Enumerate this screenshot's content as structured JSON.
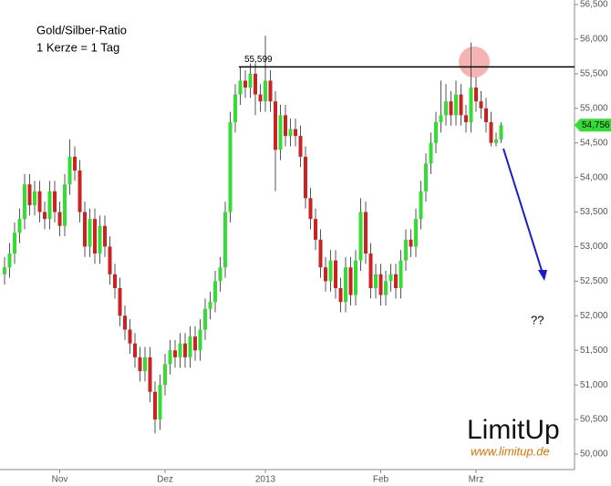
{
  "chart_data": {
    "type": "candlestick",
    "title": "Gold/Silber-Ratio",
    "subtitle": "1 Kerze = 1 Tag",
    "up_color": "#33dd33",
    "down_color": "#cc2222",
    "categories": [
      null,
      null,
      null,
      null,
      null,
      null,
      null,
      null,
      null,
      null,
      null,
      "Nov",
      null,
      null,
      null,
      null,
      null,
      null,
      null,
      null,
      null,
      null,
      null,
      null,
      null,
      null,
      null,
      null,
      null,
      null,
      null,
      null,
      "Dez",
      null,
      null,
      null,
      null,
      null,
      null,
      null,
      null,
      null,
      null,
      null,
      null,
      null,
      null,
      null,
      null,
      null,
      null,
      null,
      "2013",
      null,
      null,
      null,
      null,
      null,
      null,
      null,
      null,
      null,
      null,
      null,
      null,
      null,
      null,
      null,
      null,
      null,
      null,
      null,
      null,
      null,
      null,
      "Feb",
      null,
      null,
      null,
      null,
      null,
      null,
      null,
      null,
      null,
      null,
      null,
      null,
      null,
      null,
      null,
      null,
      null,
      null,
      "Mrz",
      null,
      null,
      null,
      null,
      null
    ],
    "open": [
      52.6,
      52.7,
      52.9,
      53.2,
      53.4,
      53.9,
      53.6,
      53.8,
      53.5,
      53.4,
      53.8,
      53.5,
      53.3,
      53.9,
      54.3,
      54.1,
      53.5,
      53.0,
      53.4,
      52.9,
      53.3,
      53.0,
      52.6,
      52.4,
      52.0,
      51.8,
      51.6,
      51.4,
      51.2,
      51.4,
      50.9,
      50.5,
      51.0,
      51.3,
      51.5,
      51.4,
      51.6,
      51.4,
      51.7,
      51.5,
      51.8,
      52.1,
      52.2,
      52.5,
      52.7,
      53.5,
      54.8,
      55.2,
      55.4,
      55.3,
      55.5,
      55.2,
      55.1,
      55.4,
      55.1,
      54.4,
      54.9,
      54.6,
      54.7,
      54.6,
      54.3,
      53.7,
      53.4,
      53.1,
      52.7,
      52.5,
      52.8,
      52.4,
      52.2,
      52.7,
      52.3,
      52.8,
      53.5,
      52.9,
      52.4,
      52.6,
      52.3,
      52.5,
      52.6,
      52.4,
      52.8,
      53.1,
      53.0,
      53.4,
      53.8,
      54.2,
      54.5,
      54.8,
      54.9,
      55.1,
      54.9,
      55.2,
      54.9,
      54.8,
      55.3,
      55.1,
      55.0,
      54.8,
      54.5,
      54.55
    ],
    "high": [
      52.85,
      53.05,
      53.35,
      53.55,
      54.05,
      54.05,
      53.95,
      53.95,
      53.65,
      53.95,
      53.95,
      53.65,
      54.05,
      54.55,
      54.45,
      54.25,
      53.65,
      53.55,
      53.55,
      53.45,
      53.45,
      53.15,
      52.75,
      52.55,
      52.15,
      51.95,
      51.75,
      51.55,
      51.55,
      51.55,
      51.05,
      51.15,
      51.45,
      51.65,
      51.65,
      51.75,
      51.75,
      51.85,
      51.85,
      51.95,
      52.25,
      52.35,
      52.65,
      52.85,
      53.65,
      54.95,
      55.35,
      55.6,
      55.55,
      55.65,
      55.65,
      55.35,
      56.05,
      55.55,
      55.25,
      55.05,
      55.05,
      54.85,
      54.85,
      54.75,
      54.45,
      53.85,
      53.55,
      53.25,
      52.85,
      52.95,
      52.95,
      52.55,
      52.85,
      52.85,
      52.95,
      53.7,
      53.65,
      53.05,
      52.75,
      52.75,
      52.65,
      52.75,
      52.75,
      52.95,
      53.25,
      53.25,
      53.55,
      53.95,
      54.35,
      54.65,
      54.95,
      55.4,
      55.35,
      55.25,
      55.4,
      55.35,
      55.05,
      55.95,
      55.45,
      55.25,
      55.15,
      54.95,
      54.65,
      54.8
    ],
    "low": [
      52.45,
      52.55,
      52.75,
      53.05,
      53.25,
      53.45,
      53.45,
      53.35,
      53.25,
      53.25,
      53.35,
      53.15,
      53.15,
      53.75,
      53.95,
      53.35,
      52.85,
      52.85,
      52.75,
      52.75,
      52.85,
      52.45,
      52.25,
      51.85,
      51.65,
      51.45,
      51.25,
      51.05,
      51.05,
      50.75,
      50.3,
      50.35,
      50.85,
      51.15,
      51.25,
      51.25,
      51.25,
      51.25,
      51.35,
      51.35,
      51.65,
      51.95,
      52.05,
      52.35,
      52.55,
      53.35,
      54.65,
      55.05,
      55.15,
      55.15,
      54.9,
      54.95,
      54.95,
      54.95,
      53.8,
      54.25,
      54.45,
      54.45,
      54.45,
      54.15,
      53.55,
      53.25,
      52.95,
      52.55,
      52.35,
      52.35,
      52.25,
      52.05,
      52.05,
      52.15,
      52.15,
      52.65,
      52.75,
      52.25,
      52.25,
      52.15,
      52.15,
      52.35,
      52.25,
      52.25,
      52.65,
      52.85,
      52.85,
      53.25,
      53.65,
      54.05,
      54.35,
      54.65,
      54.75,
      54.75,
      54.75,
      54.75,
      54.65,
      54.65,
      54.95,
      54.85,
      54.65,
      54.45,
      54.45,
      54.5
    ],
    "close": [
      52.7,
      52.9,
      53.2,
      53.4,
      53.9,
      53.6,
      53.8,
      53.5,
      53.4,
      53.8,
      53.5,
      53.3,
      53.9,
      54.3,
      54.1,
      53.5,
      53.0,
      53.4,
      52.9,
      53.3,
      53.0,
      52.6,
      52.4,
      52.0,
      51.8,
      51.6,
      51.4,
      51.2,
      51.4,
      50.9,
      50.5,
      51.0,
      51.3,
      51.5,
      51.4,
      51.6,
      51.4,
      51.7,
      51.5,
      51.8,
      52.1,
      52.2,
      52.5,
      52.7,
      53.5,
      54.8,
      55.2,
      55.4,
      55.3,
      55.5,
      55.2,
      55.1,
      55.4,
      55.1,
      54.4,
      54.9,
      54.6,
      54.7,
      54.6,
      54.3,
      53.7,
      53.4,
      53.1,
      52.7,
      52.5,
      52.8,
      52.4,
      52.2,
      52.7,
      52.3,
      52.8,
      53.5,
      52.9,
      52.4,
      52.6,
      52.3,
      52.5,
      52.6,
      52.4,
      52.8,
      53.1,
      53.0,
      53.4,
      53.8,
      54.2,
      54.5,
      54.8,
      54.9,
      55.1,
      54.9,
      55.2,
      54.9,
      54.8,
      55.3,
      55.1,
      55.0,
      54.8,
      54.5,
      54.55,
      54.756
    ],
    "last_label": "54,756",
    "resistance": {
      "value": 55.599,
      "label": "55,599"
    },
    "annotation": "??",
    "ylim": [
      49.776,
      56.566
    ],
    "yticks": [
      {
        "value": 50,
        "label": "50,000"
      },
      {
        "value": 50.5,
        "label": "50,500"
      },
      {
        "value": 51,
        "label": "51,000"
      },
      {
        "value": 51.5,
        "label": "51,500"
      },
      {
        "value": 52,
        "label": "52,000"
      },
      {
        "value": 52.5,
        "label": "52,500"
      },
      {
        "value": 53,
        "label": "53,000"
      },
      {
        "value": 53.5,
        "label": "53,500"
      },
      {
        "value": 54,
        "label": "54,000"
      },
      {
        "value": 54.5,
        "label": "54,500"
      },
      {
        "value": 55,
        "label": "55,000"
      },
      {
        "value": 55.5,
        "label": "55,500"
      },
      {
        "value": 56,
        "label": "56,000"
      },
      {
        "value": 56.5,
        "label": "56,500"
      }
    ]
  },
  "logo": {
    "name": "LimitUp",
    "url": "www.limitup.de"
  }
}
